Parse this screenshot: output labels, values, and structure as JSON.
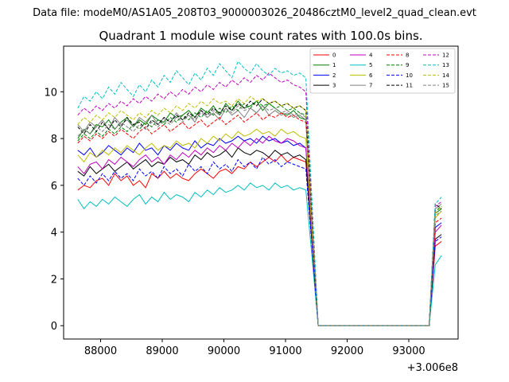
{
  "figure": {
    "suptitle": "Data file: modeM0/AS1A05_208T03_9000003026_20486cztM0_level2_quad_clean.evt"
  },
  "chart_data": {
    "type": "line",
    "title": "Quadrant 1 module wise count rates with 100.0s bins.",
    "xlabel": "",
    "ylabel": "",
    "x_offset_label": "+3.006e8",
    "xlim": [
      87400,
      93800
    ],
    "ylim": [
      -0.57,
      11.95
    ],
    "x_ticks": [
      88000,
      89000,
      90000,
      91000,
      92000,
      93000
    ],
    "x_tick_labels": [
      "88000",
      "89000",
      "90000",
      "91000",
      "92000",
      "93000"
    ],
    "y_ticks": [
      0,
      2,
      4,
      6,
      8,
      10
    ],
    "y_tick_labels": [
      "0",
      "2",
      "4",
      "6",
      "8",
      "10"
    ],
    "legend_location": "upper right",
    "x_start": 87630,
    "bin_width": 100,
    "n_active": 38,
    "gap_x": [
      91530,
      93330
    ],
    "series": [
      {
        "name": "0",
        "color": "#ff0000",
        "dash": "solid",
        "values": [
          5.8,
          6.0,
          5.9,
          6.2,
          6.3,
          6.0,
          6.5,
          6.2,
          6.4,
          6.0,
          6.2,
          5.9,
          6.5,
          6.3,
          6.6,
          6.3,
          6.5,
          6.3,
          6.2,
          6.5,
          6.7,
          6.5,
          6.3,
          6.6,
          6.7,
          6.5,
          6.8,
          6.7,
          7.0,
          6.8,
          7.0,
          7.2,
          7.0,
          7.3,
          7.0,
          7.2,
          7.1,
          7.0
        ],
        "end": [
          3.4,
          3.6
        ]
      },
      {
        "name": "1",
        "color": "#008000",
        "dash": "solid",
        "values": [
          8.0,
          8.4,
          8.2,
          8.6,
          8.5,
          8.8,
          8.4,
          8.7,
          8.9,
          8.5,
          8.8,
          8.6,
          9.0,
          8.8,
          8.7,
          9.1,
          8.9,
          9.0,
          9.2,
          8.9,
          9.3,
          9.1,
          9.4,
          9.0,
          9.5,
          9.2,
          9.6,
          9.3,
          9.4,
          9.6,
          9.2,
          9.5,
          9.3,
          9.1,
          9.0,
          9.2,
          8.9,
          8.8
        ],
        "end": [
          4.8,
          5.0
        ]
      },
      {
        "name": "2",
        "color": "#0000ff",
        "dash": "solid",
        "values": [
          7.5,
          7.3,
          7.6,
          7.2,
          7.4,
          7.7,
          7.5,
          7.3,
          7.6,
          7.4,
          7.8,
          7.5,
          7.6,
          7.3,
          7.7,
          7.5,
          7.8,
          7.6,
          7.5,
          7.9,
          7.6,
          7.8,
          7.7,
          8.0,
          7.8,
          7.9,
          8.1,
          7.9,
          8.0,
          7.8,
          8.1,
          7.9,
          8.0,
          7.8,
          7.9,
          7.7,
          7.8,
          7.6
        ],
        "end": [
          4.2,
          4.4
        ]
      },
      {
        "name": "3",
        "color": "#000000",
        "dash": "solid",
        "values": [
          6.6,
          6.4,
          6.8,
          6.5,
          6.7,
          6.9,
          6.6,
          6.8,
          7.0,
          6.7,
          6.9,
          7.1,
          6.8,
          7.0,
          6.9,
          7.2,
          7.0,
          7.1,
          6.9,
          7.3,
          7.1,
          7.4,
          7.2,
          7.3,
          7.5,
          7.2,
          7.6,
          7.4,
          7.3,
          7.5,
          7.4,
          7.2,
          7.5,
          7.3,
          7.4,
          7.2,
          7.3,
          7.1
        ],
        "end": [
          3.7,
          3.9
        ]
      },
      {
        "name": "4",
        "color": "#bf00bf",
        "dash": "solid",
        "values": [
          6.8,
          6.5,
          6.9,
          7.0,
          6.7,
          7.1,
          6.9,
          7.2,
          7.0,
          6.8,
          7.1,
          7.3,
          7.0,
          7.2,
          6.9,
          7.3,
          7.1,
          7.4,
          7.2,
          7.5,
          7.3,
          7.6,
          7.4,
          7.7,
          7.5,
          7.8,
          7.6,
          7.9,
          7.7,
          8.0,
          7.8,
          8.1,
          7.9,
          7.8,
          8.0,
          7.9,
          7.7,
          7.6
        ],
        "end": [
          4.0,
          4.3
        ]
      },
      {
        "name": "5",
        "color": "#00bfbf",
        "dash": "solid",
        "values": [
          5.4,
          5.0,
          5.3,
          5.1,
          5.4,
          5.2,
          5.5,
          5.3,
          5.1,
          5.4,
          5.6,
          5.2,
          5.5,
          5.3,
          5.7,
          5.4,
          5.6,
          5.5,
          5.3,
          5.7,
          5.5,
          5.8,
          5.6,
          5.9,
          5.7,
          5.8,
          6.0,
          5.8,
          6.1,
          5.9,
          6.0,
          5.8,
          6.1,
          5.9,
          6.0,
          5.8,
          5.9,
          5.8
        ],
        "end": [
          2.6,
          3.0
        ]
      },
      {
        "name": "6",
        "color": "#bfbf00",
        "dash": "solid",
        "values": [
          7.3,
          7.0,
          7.4,
          7.2,
          7.5,
          7.3,
          7.6,
          7.4,
          7.7,
          7.5,
          7.3,
          7.6,
          7.8,
          7.5,
          7.7,
          7.6,
          7.9,
          7.7,
          7.8,
          7.6,
          8.0,
          7.8,
          8.1,
          7.9,
          8.2,
          8.0,
          8.3,
          8.1,
          8.2,
          8.4,
          8.2,
          8.3,
          8.1,
          8.4,
          8.2,
          8.3,
          8.1,
          8.0
        ],
        "end": [
          4.6,
          4.9
        ]
      },
      {
        "name": "7",
        "color": "#808080",
        "dash": "solid",
        "values": [
          8.6,
          8.3,
          8.7,
          8.5,
          8.8,
          8.4,
          8.9,
          8.6,
          8.8,
          8.5,
          8.9,
          8.7,
          9.0,
          8.6,
          8.9,
          8.7,
          9.1,
          8.8,
          9.0,
          8.7,
          9.2,
          8.9,
          9.1,
          8.8,
          9.3,
          9.0,
          9.2,
          8.9,
          9.3,
          9.1,
          9.4,
          9.0,
          9.2,
          9.0,
          9.1,
          8.9,
          9.0,
          8.8
        ],
        "end": [
          5.0,
          5.2
        ]
      },
      {
        "name": "8",
        "color": "#ff0000",
        "dash": "dashed",
        "values": [
          7.8,
          8.1,
          7.9,
          8.2,
          8.0,
          8.3,
          8.1,
          8.4,
          8.2,
          8.0,
          8.3,
          8.5,
          8.2,
          8.4,
          8.6,
          8.3,
          8.5,
          8.7,
          8.4,
          8.6,
          8.8,
          8.5,
          8.7,
          8.9,
          8.6,
          8.8,
          9.0,
          8.7,
          8.9,
          9.1,
          8.8,
          9.0,
          8.9,
          9.1,
          8.9,
          9.0,
          8.8,
          8.7
        ],
        "end": [
          4.4,
          4.6
        ]
      },
      {
        "name": "9",
        "color": "#008000",
        "dash": "dashed",
        "values": [
          7.9,
          8.2,
          8.0,
          8.3,
          8.1,
          8.4,
          8.2,
          8.5,
          8.3,
          8.6,
          8.4,
          8.7,
          8.5,
          8.8,
          8.6,
          8.9,
          8.7,
          9.0,
          8.8,
          9.1,
          8.9,
          9.2,
          9.0,
          9.3,
          9.1,
          9.4,
          9.2,
          9.5,
          9.3,
          9.6,
          9.4,
          9.5,
          9.3,
          9.4,
          9.2,
          9.3,
          9.1,
          9.0
        ],
        "end": [
          4.9,
          5.1
        ]
      },
      {
        "name": "10",
        "color": "#0000ff",
        "dash": "dashed",
        "values": [
          6.3,
          6.0,
          6.4,
          6.1,
          6.5,
          6.2,
          6.6,
          6.3,
          6.5,
          6.2,
          6.7,
          6.4,
          6.6,
          6.3,
          6.8,
          6.5,
          6.7,
          6.4,
          6.9,
          6.6,
          6.8,
          6.5,
          7.0,
          6.7,
          6.9,
          6.6,
          7.1,
          6.8,
          7.0,
          6.7,
          7.2,
          6.9,
          7.1,
          6.8,
          7.0,
          6.9,
          6.8,
          6.7
        ],
        "end": [
          3.6,
          3.8
        ]
      },
      {
        "name": "11",
        "color": "#000000",
        "dash": "dashed",
        "values": [
          8.5,
          8.2,
          8.6,
          8.3,
          8.7,
          8.4,
          8.8,
          8.5,
          8.9,
          8.6,
          8.7,
          8.4,
          8.8,
          8.6,
          8.9,
          8.7,
          9.0,
          8.8,
          9.1,
          8.9,
          9.2,
          9.0,
          9.3,
          9.1,
          9.4,
          9.2,
          9.5,
          9.3,
          9.6,
          9.4,
          9.7,
          9.5,
          9.6,
          9.4,
          9.5,
          9.3,
          9.4,
          9.2
        ],
        "end": [
          5.2,
          5.0
        ]
      },
      {
        "name": "12",
        "color": "#bf00bf",
        "dash": "dashed",
        "values": [
          9.0,
          9.3,
          9.1,
          9.4,
          9.2,
          9.5,
          9.3,
          9.6,
          9.4,
          9.7,
          9.5,
          9.8,
          9.6,
          9.9,
          9.7,
          10.0,
          9.8,
          10.1,
          9.9,
          10.2,
          10.0,
          10.3,
          10.1,
          10.4,
          10.2,
          10.5,
          10.3,
          10.6,
          10.4,
          10.7,
          10.5,
          10.8,
          10.6,
          10.4,
          10.5,
          10.3,
          10.2,
          10.0
        ],
        "end": [
          5.1,
          5.3
        ]
      },
      {
        "name": "13",
        "color": "#00bfbf",
        "dash": "dashed",
        "values": [
          9.3,
          9.8,
          9.6,
          10.0,
          9.7,
          10.2,
          9.9,
          10.4,
          10.1,
          9.8,
          10.3,
          10.0,
          10.5,
          10.2,
          10.7,
          10.4,
          10.9,
          10.6,
          10.3,
          10.8,
          10.5,
          11.0,
          10.7,
          11.2,
          10.9,
          10.6,
          11.3,
          11.0,
          10.8,
          11.2,
          10.9,
          10.7,
          11.0,
          10.8,
          10.9,
          10.7,
          10.8,
          10.6
        ],
        "end": [
          5.2,
          5.5
        ]
      },
      {
        "name": "14",
        "color": "#bfbf00",
        "dash": "dashed",
        "values": [
          8.6,
          8.9,
          8.7,
          9.0,
          8.8,
          9.1,
          8.9,
          9.2,
          9.0,
          8.8,
          9.1,
          8.9,
          9.2,
          9.0,
          9.3,
          9.1,
          9.4,
          9.2,
          9.5,
          9.3,
          9.6,
          9.4,
          9.7,
          9.5,
          9.6,
          9.4,
          9.7,
          9.5,
          9.8,
          9.6,
          9.7,
          9.5,
          9.6,
          9.4,
          9.5,
          9.3,
          9.4,
          9.2
        ],
        "end": [
          4.8,
          5.1
        ]
      },
      {
        "name": "15",
        "color": "#808080",
        "dash": "dashed",
        "values": [
          8.1,
          8.4,
          8.2,
          8.5,
          8.3,
          8.6,
          8.4,
          8.7,
          8.5,
          8.3,
          8.6,
          8.4,
          8.7,
          8.5,
          8.8,
          8.6,
          8.9,
          8.7,
          9.0,
          8.8,
          9.1,
          8.9,
          9.2,
          9.0,
          9.3,
          9.1,
          9.4,
          9.2,
          9.3,
          9.1,
          9.4,
          9.2,
          9.3,
          9.1,
          9.2,
          9.0,
          9.1,
          8.9
        ],
        "end": [
          4.7,
          4.9
        ]
      }
    ]
  }
}
